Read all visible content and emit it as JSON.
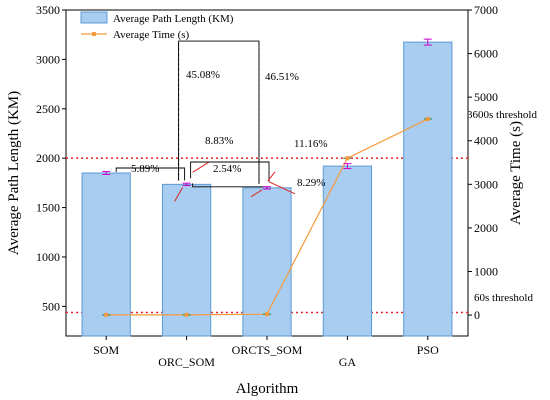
{
  "chart_data": {
    "type": "bar",
    "categories": [
      "SOM",
      "ORC_SOM",
      "ORCTS_SOM",
      "GA",
      "PSO"
    ],
    "xlabel": "Algorithm",
    "ylabel_left": "Average Path Length (KM)",
    "ylabel_right": "Average Time (s)",
    "ylim_left": [
      200,
      3500
    ],
    "ylim_right": [
      -480,
      7000
    ],
    "yticks_left": [
      "500",
      "1000",
      "1500",
      "2000",
      "2500",
      "3000",
      "3500"
    ],
    "yticks_right": [
      "0",
      "1000",
      "2000",
      "3000",
      "4000",
      "5000",
      "6000",
      "7000"
    ],
    "series": [
      {
        "name": "Average Path Length (KM)",
        "axis": "left",
        "kind": "bar",
        "values": [
          1850,
          1735,
          1700,
          1920,
          3175
        ],
        "errors": [
          15,
          12,
          12,
          25,
          30
        ],
        "color": "#a9cdf0",
        "edge_color": "#5b9bd5",
        "error_color": "#cc00cc"
      },
      {
        "name": "Average Time (s)",
        "axis": "right",
        "kind": "line",
        "values": [
          5,
          5,
          20,
          3600,
          4500
        ],
        "color": "#f59a3e",
        "marker_color": "#2e8b57"
      }
    ],
    "thresholds": [
      {
        "label": "3600s threshold",
        "value": 3600,
        "axis": "right",
        "color": "#ee2222"
      },
      {
        "label": "60s threshold",
        "value": 60,
        "axis": "right",
        "color": "#ee2222"
      }
    ],
    "annotations": [
      "45.08%",
      "46.51%",
      "8.83%",
      "5.89%",
      "11.16%",
      "8.29%",
      "2.54%"
    ],
    "legend_position": "top-left"
  }
}
